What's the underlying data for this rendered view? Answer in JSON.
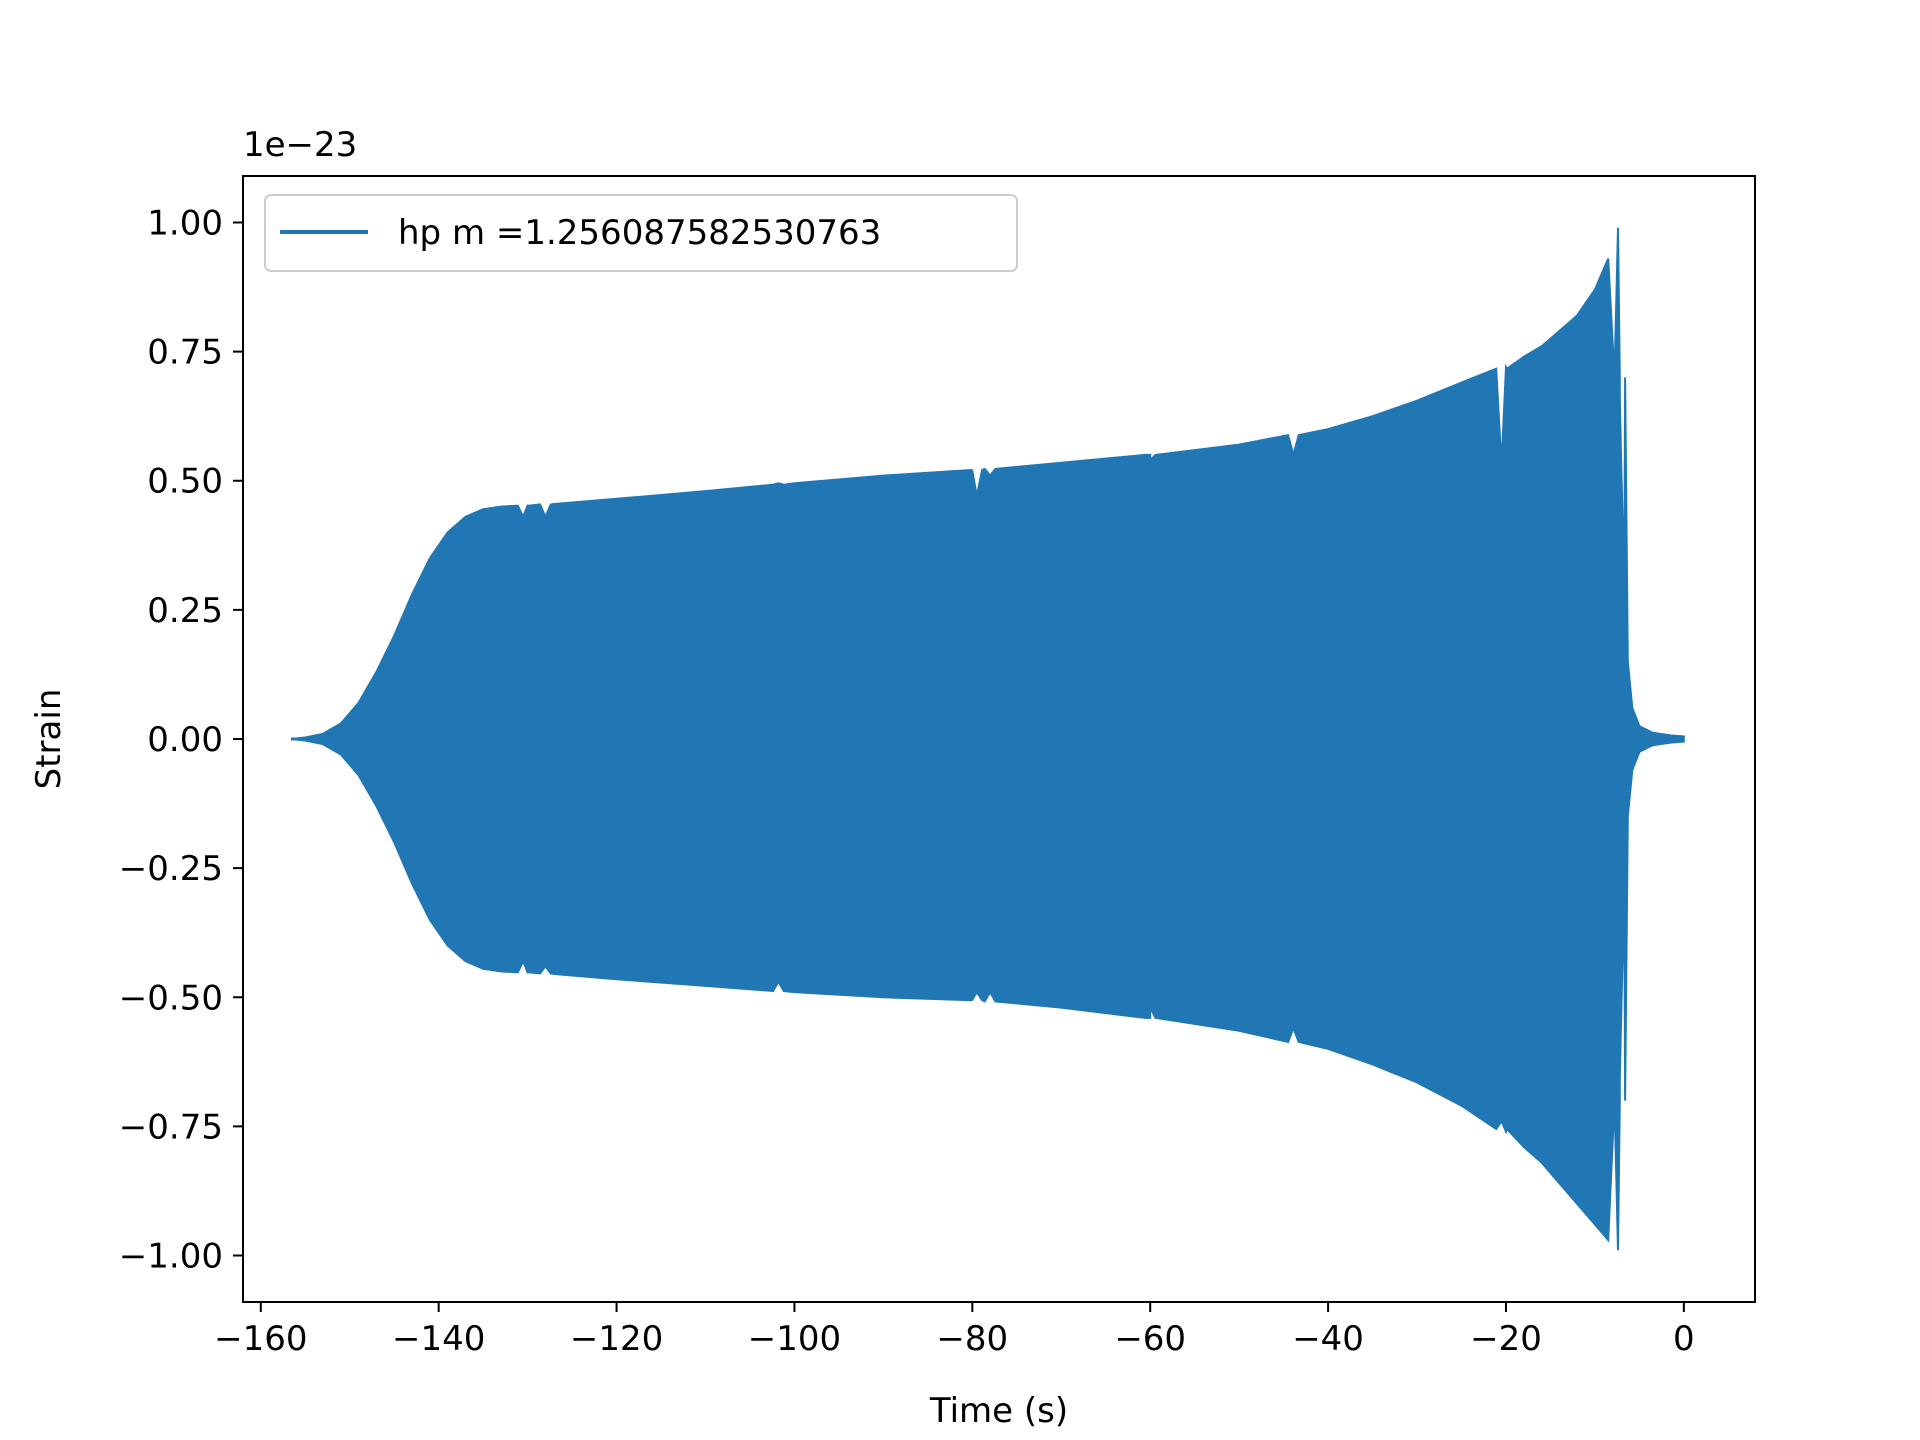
{
  "chart_data": {
    "type": "line",
    "xlabel": "Time (s)",
    "ylabel": "Strain",
    "y_offset_text": "1e−23",
    "xlim": [
      -162,
      8
    ],
    "ylim": [
      -1.09,
      1.09
    ],
    "x_ticks": [
      -160,
      -140,
      -120,
      -100,
      -80,
      -60,
      -40,
      -20,
      0
    ],
    "x_tick_labels": [
      "−160",
      "−140",
      "−120",
      "−100",
      "−80",
      "−60",
      "−40",
      "−20",
      "0"
    ],
    "y_ticks": [
      1.0,
      0.75,
      0.5,
      0.25,
      0.0,
      -0.25,
      -0.5,
      -0.75,
      -1.0
    ],
    "y_tick_labels": [
      "1.00",
      "0.75",
      "0.50",
      "0.25",
      "0.00",
      "−0.25",
      "−0.50",
      "−0.75",
      "−1.00"
    ],
    "legend_position": "upper-left",
    "grid": false,
    "color": "#2077b4",
    "series": [
      {
        "name": "hp m =1.256087582530763",
        "envelope": {
          "t": [
            -156.6,
            -155,
            -153,
            -151,
            -149,
            -147,
            -145,
            -143,
            -141,
            -139,
            -137,
            -135,
            -133,
            -130,
            -127,
            -120,
            -110,
            -100,
            -90,
            -80,
            -70,
            -60,
            -50,
            -40,
            -35,
            -30,
            -25,
            -20,
            -18,
            -16,
            -14,
            -12,
            -10,
            -8.5,
            -7.4,
            -7.2,
            -7.0,
            -6.7,
            -6.3,
            -5.8,
            -5.0,
            -3.5,
            -1.5,
            0
          ],
          "upper": [
            0.0,
            0.003,
            0.01,
            0.03,
            0.07,
            0.13,
            0.2,
            0.28,
            0.35,
            0.4,
            0.43,
            0.445,
            0.45,
            0.452,
            0.455,
            0.465,
            0.48,
            0.495,
            0.51,
            0.52,
            0.535,
            0.55,
            0.57,
            0.6,
            0.625,
            0.655,
            0.69,
            0.72,
            0.74,
            0.76,
            0.79,
            0.82,
            0.87,
            0.93,
            0.99,
            0.7,
            0.5,
            0.3,
            0.15,
            0.06,
            0.025,
            0.012,
            0.007,
            0.005
          ],
          "lower": [
            0.0,
            -0.003,
            -0.01,
            -0.03,
            -0.07,
            -0.13,
            -0.2,
            -0.28,
            -0.35,
            -0.4,
            -0.43,
            -0.445,
            -0.45,
            -0.452,
            -0.455,
            -0.465,
            -0.478,
            -0.49,
            -0.5,
            -0.505,
            -0.52,
            -0.54,
            -0.565,
            -0.6,
            -0.63,
            -0.665,
            -0.71,
            -0.76,
            -0.79,
            -0.82,
            -0.86,
            -0.9,
            -0.94,
            -0.97,
            -0.99,
            -0.7,
            -0.5,
            -0.3,
            -0.15,
            -0.06,
            -0.025,
            -0.012,
            -0.007,
            -0.005
          ]
        },
        "dips": [
          {
            "t": -130.5,
            "upper": 0.43,
            "lower": -0.43
          },
          {
            "t": -128.0,
            "upper": 0.43,
            "lower": -0.44
          },
          {
            "t": -101.8,
            "upper": 0.495,
            "lower": -0.47
          },
          {
            "t": -79.5,
            "upper": 0.47,
            "lower": -0.49
          },
          {
            "t": -78.0,
            "upper": 0.51,
            "lower": -0.49
          },
          {
            "t": -60.0,
            "upper": 0.54,
            "lower": -0.52
          },
          {
            "t": -43.9,
            "upper": 0.55,
            "lower": -0.56
          },
          {
            "t": -20.5,
            "upper": 0.53,
            "lower": -0.74
          },
          {
            "t": -7.2,
            "upper": 0.66,
            "lower": -0.66
          }
        ]
      }
    ]
  }
}
